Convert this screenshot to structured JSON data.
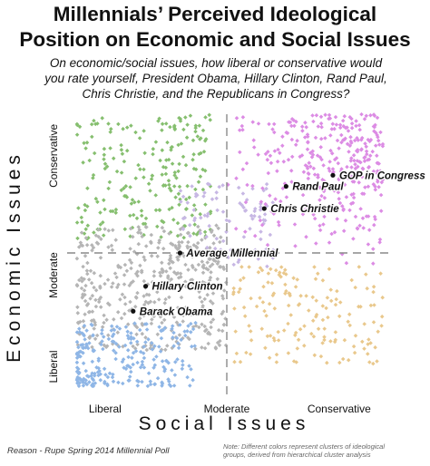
{
  "title_line1": "Millennials’ Perceived Ideological",
  "title_line2": "Position on Economic and Social Issues",
  "subtitle_line1": "On economic/social issues, how liberal or conservative would",
  "subtitle_line2": "you rate yourself, President Obama, Hillary Clinton, Rand Paul,",
  "subtitle_line3": "Chris Christie, and the Republicans in Congress?",
  "footer_source": "Reason - Rupe Spring 2014 Millennial Poll",
  "footer_note_line1": "Note: Different colors represent clusters of ideological",
  "footer_note_line2": "groups, derived from hierarchical cluster analysis",
  "colors": {
    "green": "#86bf6f",
    "gray": "#b5b5b5",
    "blue": "#8fb6e6",
    "lavender": "#c7b7e4",
    "pink": "#dc8ce4",
    "orange": "#e9c88c"
  },
  "chart_data": {
    "type": "scatter",
    "xlabel": "Social Issues",
    "ylabel": "Economic Issues",
    "x_ticks": [
      "Liberal",
      "Moderate",
      "Conservative"
    ],
    "y_ticks": [
      "Liberal",
      "Moderate",
      "Conservative"
    ],
    "xlim": [
      0,
      10
    ],
    "ylim": [
      0,
      10
    ],
    "grid": false,
    "reference_lines": {
      "x": 5,
      "y": 5
    },
    "annotations": [
      {
        "label": "GOP in Congress",
        "x": 8.4,
        "y": 7.8
      },
      {
        "label": "Rand Paul",
        "x": 6.9,
        "y": 7.4
      },
      {
        "label": "Chris Christie",
        "x": 6.2,
        "y": 6.6
      },
      {
        "label": "Average Millennial",
        "x": 3.5,
        "y": 5.0
      },
      {
        "label": "Hillary Clinton",
        "x": 2.4,
        "y": 3.8
      },
      {
        "label": "Barack Obama",
        "x": 2.0,
        "y": 2.9
      }
    ],
    "clusters": [
      {
        "color": "green",
        "x_range": [
          0.2,
          4.5
        ],
        "y_range": [
          5.5,
          10
        ]
      },
      {
        "color": "gray",
        "x_range": [
          0.2,
          5.0
        ],
        "y_range": [
          1.5,
          6.0
        ]
      },
      {
        "color": "blue",
        "x_range": [
          0.2,
          4.0
        ],
        "y_range": [
          0.2,
          2.5
        ]
      },
      {
        "color": "lavender",
        "x_range": [
          3.5,
          6.5
        ],
        "y_range": [
          4.5,
          7.5
        ]
      },
      {
        "color": "pink",
        "x_range": [
          4.8,
          10
        ],
        "y_range": [
          4.5,
          10
        ]
      },
      {
        "color": "orange",
        "x_range": [
          5.2,
          10
        ],
        "y_range": [
          1.0,
          4.5
        ]
      }
    ]
  }
}
